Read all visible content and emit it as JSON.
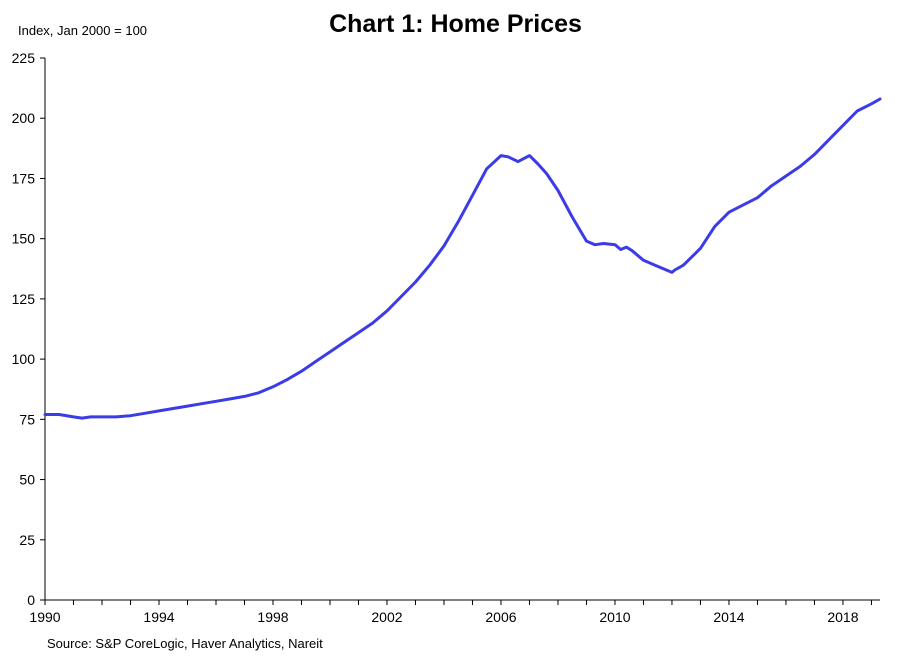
{
  "chart_data": {
    "type": "line",
    "title": "Chart 1: Home Prices",
    "ylabel": "Index, Jan 2000 = 100",
    "xlabel": "",
    "source": "Source: S&P CoreLogic, Haver Analytics, Nareit",
    "xlim": [
      1990,
      2019.3
    ],
    "ylim": [
      0,
      225
    ],
    "x_ticks": [
      1990,
      1994,
      1998,
      2002,
      2006,
      2010,
      2014,
      2018
    ],
    "y_ticks": [
      0,
      25,
      50,
      75,
      100,
      125,
      150,
      175,
      200,
      225
    ],
    "grid": false,
    "line_color": "#3b3be8",
    "series": [
      {
        "x": [
          1990.0,
          1990.5,
          1991.0,
          1991.3,
          1991.6,
          1992.0,
          1992.5,
          1993.0,
          1993.5,
          1994.0,
          1994.5,
          1995.0,
          1995.5,
          1996.0,
          1996.5,
          1997.0,
          1997.5,
          1998.0,
          1998.5,
          1999.0,
          1999.5,
          2000.0,
          2000.5,
          2001.0,
          2001.5,
          2002.0,
          2002.5,
          2003.0,
          2003.5,
          2004.0,
          2004.5,
          2005.0,
          2005.5,
          2006.0,
          2006.25,
          2006.6,
          2007.0,
          2007.3,
          2007.6,
          2008.0,
          2008.5,
          2009.0,
          2009.3,
          2009.6,
          2010.0,
          2010.2,
          2010.4,
          2010.6,
          2011.0,
          2011.5,
          2012.0,
          2012.1,
          2012.4,
          2013.0,
          2013.5,
          2014.0,
          2014.5,
          2015.0,
          2015.5,
          2016.0,
          2016.5,
          2017.0,
          2017.5,
          2018.0,
          2018.5,
          2019.0,
          2019.3
        ],
        "values": [
          77,
          77,
          76,
          75.5,
          76,
          76,
          76,
          76.5,
          77.5,
          78.5,
          79.5,
          80.5,
          81.5,
          82.5,
          83.5,
          84.5,
          86,
          88.5,
          91.5,
          95,
          99,
          103,
          107,
          111,
          115,
          120,
          126,
          132,
          139,
          147,
          157,
          168,
          179,
          184.5,
          184,
          182,
          184.5,
          181,
          177,
          170,
          159,
          149,
          147.5,
          148,
          147.5,
          145.5,
          146.5,
          145,
          141,
          138.5,
          136,
          137,
          139,
          146,
          155,
          161,
          164,
          167,
          172,
          176,
          180,
          185,
          191,
          197,
          203,
          206,
          208
        ]
      }
    ]
  }
}
